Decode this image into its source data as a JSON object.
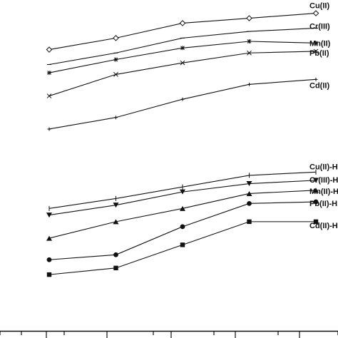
{
  "chart_data": {
    "type": "line",
    "title": "",
    "xlabel": "",
    "ylabel": "",
    "x": [
      1,
      2,
      3,
      4,
      5
    ],
    "xlim": [
      0.0,
      5.85
    ],
    "ylim": [
      0,
      100
    ],
    "grid": false,
    "legend": "inline-right",
    "series": [
      {
        "name": "Cu(II)",
        "marker": "diamond",
        "y": [
          85,
          88.5,
          93,
          94.5,
          96
        ]
      },
      {
        "name": "Cr(III)",
        "marker": "dash",
        "y": [
          80.5,
          84,
          88.5,
          90.5,
          91.5
        ]
      },
      {
        "name": "Mn(II)",
        "marker": "asterisk",
        "y": [
          78,
          82,
          85.5,
          87.5,
          87
        ]
      },
      {
        "name": "Pb(II)",
        "marker": "x",
        "y": [
          71,
          77.5,
          81,
          84,
          84.5
        ]
      },
      {
        "name": "Cd(II)",
        "marker": "plus",
        "y": [
          61,
          64.5,
          70,
          74.5,
          76
        ]
      },
      {
        "name": "Cu(II)-H",
        "marker": "tick",
        "y": [
          37,
          40,
          43.5,
          47,
          48
        ]
      },
      {
        "name": "Cr(III)-H",
        "marker": "triangle-down",
        "y": [
          35,
          38,
          42,
          44.5,
          45.5
        ]
      },
      {
        "name": "Mn(II)-H",
        "marker": "triangle-up",
        "y": [
          28,
          33,
          37,
          41.5,
          42.5
        ]
      },
      {
        "name": "Pb(II)-H",
        "marker": "circle",
        "y": [
          21.5,
          23,
          31.5,
          38.5,
          39
        ]
      },
      {
        "name": "Cd(II)-H",
        "marker": "square",
        "y": [
          17,
          19,
          26,
          33,
          33
        ]
      }
    ]
  }
}
